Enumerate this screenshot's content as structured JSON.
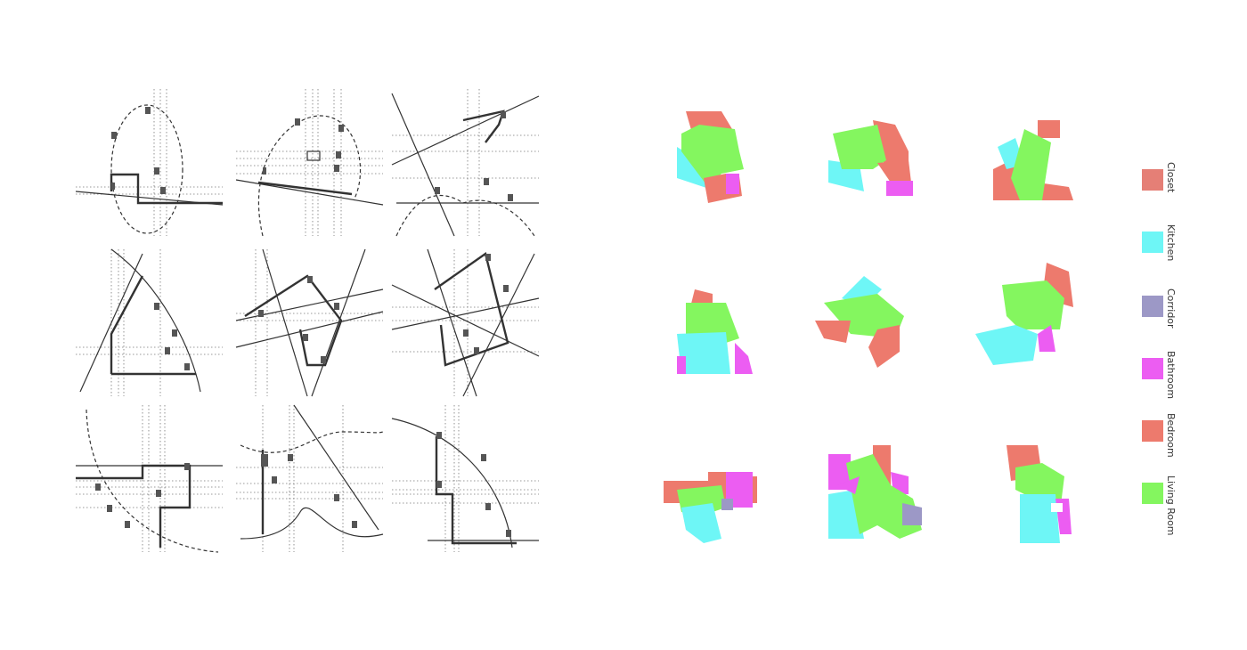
{
  "legend": [
    {
      "label": "Closet",
      "color": "#e57f76"
    },
    {
      "label": "Kitchen",
      "color": "#6ef6f6"
    },
    {
      "label": "Corridor",
      "color": "#9c98c6"
    },
    {
      "label": "Bathroom",
      "color": "#ec5df2"
    },
    {
      "label": "Bedroom",
      "color": "#ed7a6d"
    },
    {
      "label": "Living Room",
      "color": "#84f65f"
    }
  ],
  "colors": {
    "closet": "#e57f76",
    "kitchen": "#6ef6f6",
    "corridor": "#9c98c6",
    "bathroom": "#ec5df2",
    "bedroom": "#ed7a6d",
    "living": "#84f65f"
  }
}
